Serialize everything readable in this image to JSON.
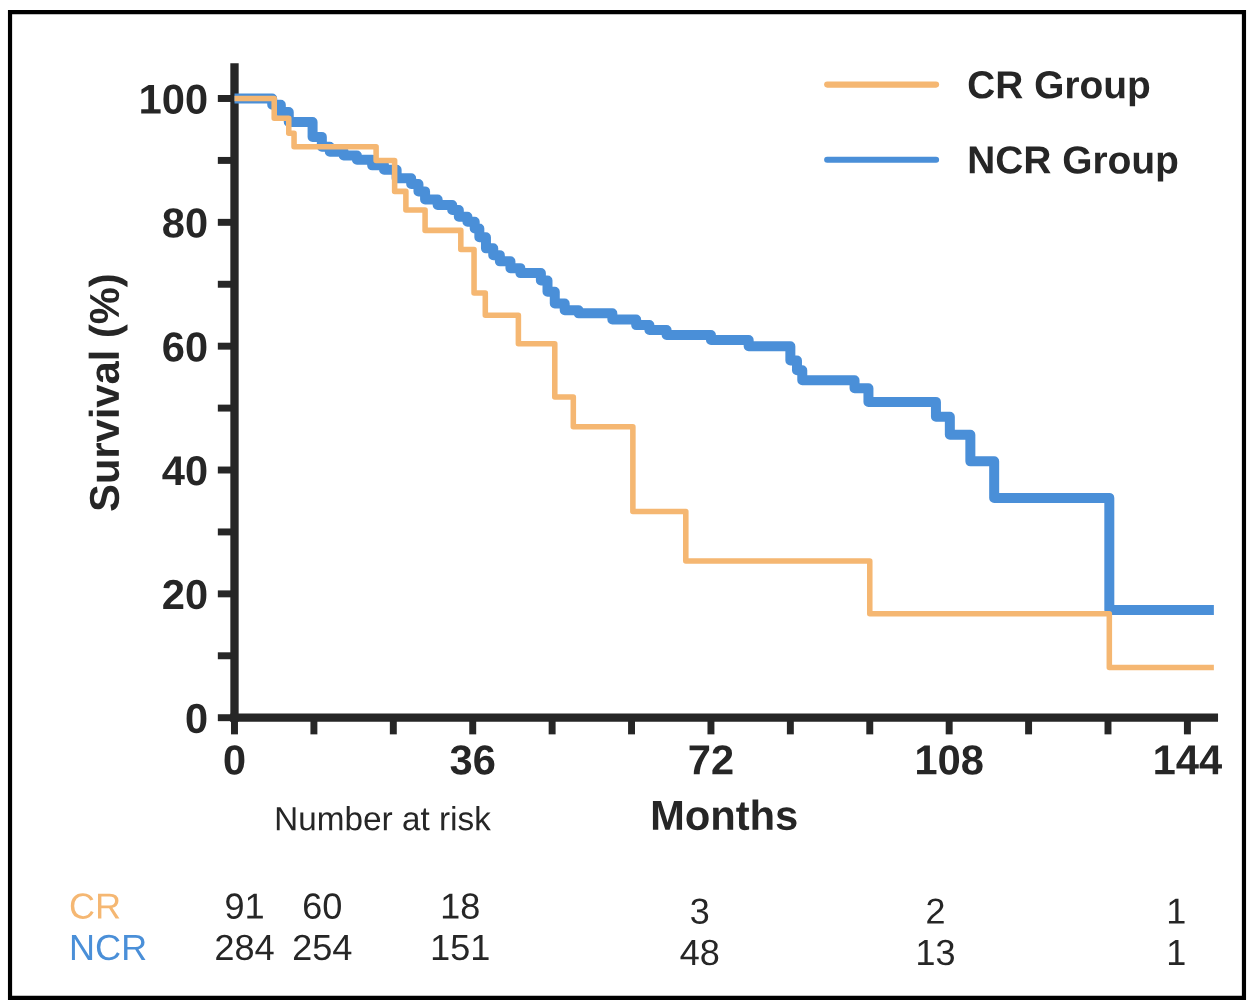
{
  "chart_data": {
    "type": "step",
    "xlabel": "Months",
    "ylabel": "Survival (%)",
    "series": [
      {
        "name": "CR Group",
        "color": "#f5b772",
        "x": [
          0,
          6,
          8.2,
          9,
          21.4,
          24.2,
          25.9,
          28.8,
          34.2,
          36.2,
          37.9,
          42.9,
          48.4,
          51.2,
          60.2,
          68.2,
          96,
          132.2,
          148
        ],
        "values": [
          100,
          96.8,
          94.4,
          92.2,
          90,
          85,
          82,
          78.7,
          75.6,
          68.6,
          65,
          60.4,
          51.8,
          47,
          33.3,
          25.3,
          16.8,
          8.1,
          8.1
        ]
      },
      {
        "name": "NCR Group",
        "color": "#4a8fd8",
        "x": [
          0,
          5.7,
          7,
          8.2,
          11.8,
          13.2,
          14.4,
          16.5,
          18.5,
          20.8,
          22.6,
          24.5,
          26.7,
          27.8,
          28.8,
          30.7,
          32.9,
          33.9,
          35.2,
          36.3,
          37,
          38,
          39.1,
          40.1,
          41.7,
          43.2,
          46.3,
          47.3,
          48.4,
          49.9,
          52,
          57.1,
          60.7,
          62.7,
          65.3,
          72,
          77.7,
          84,
          85,
          85.8,
          93.7,
          95.8,
          106,
          108.1,
          111.2,
          114.8,
          132.2,
          148
        ],
        "values": [
          100,
          99,
          97.8,
          96.2,
          93.8,
          92.2,
          91.4,
          90.8,
          90.1,
          89.2,
          88.5,
          87.1,
          86.2,
          85,
          83.7,
          82.8,
          82,
          80.9,
          80.1,
          79,
          77.6,
          75.8,
          74.7,
          73.7,
          72.6,
          71.8,
          70.6,
          68.8,
          66.9,
          65.8,
          65.3,
          64.3,
          63.4,
          62.6,
          61.8,
          61,
          60,
          57.7,
          56.1,
          54.5,
          53.2,
          51,
          48.6,
          45.7,
          41.4,
          35.5,
          17.4,
          17.4
        ]
      }
    ],
    "xlim": [
      0,
      148
    ],
    "xticks": [
      0,
      {
        "value": 12,
        "label": null
      },
      {
        "value": 24,
        "label": null
      },
      36,
      {
        "value": 48,
        "label": null
      },
      {
        "value": 60,
        "label": null
      },
      72,
      {
        "value": 84,
        "label": null
      },
      {
        "value": 96,
        "label": null
      },
      108,
      {
        "value": 120,
        "label": null
      },
      {
        "value": 132,
        "label": null
      },
      144
    ],
    "ylim": [
      0,
      105
    ],
    "yticks": [
      0,
      {
        "value": 10,
        "label": null
      },
      20,
      {
        "value": 30,
        "label": null
      },
      40,
      {
        "value": 50,
        "label": null
      },
      60,
      {
        "value": 70,
        "label": null
      },
      80,
      {
        "value": 90,
        "label": null
      },
      100
    ],
    "legend": "top right",
    "grid": false,
    "line_style": "solid",
    "annotations": [
      "Number at risk",
      "CR",
      "91",
      "60",
      "18",
      "3",
      "2",
      "1",
      "NCR",
      "284",
      "254",
      "151",
      "48",
      "13",
      "1"
    ]
  }
}
